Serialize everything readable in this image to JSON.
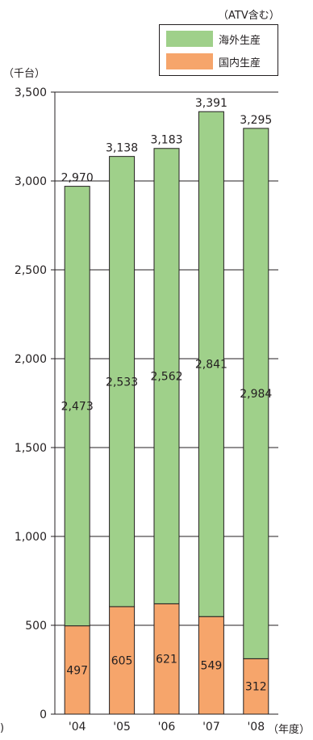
{
  "annotations": {
    "top_note": "（ATV含む）",
    "unit": "（千台）",
    "x_unit": "（年度）",
    "stray_mark": ")"
  },
  "colors": {
    "overseas": "#9fd08a",
    "domestic": "#f6a56b",
    "outline": "#231f20",
    "grid": "#231f20"
  },
  "chart_data": {
    "type": "bar",
    "stacked": true,
    "categories": [
      "'04",
      "'05",
      "'06",
      "'07",
      "'08"
    ],
    "series": [
      {
        "name": "国内生産",
        "values": [
          497,
          605,
          621,
          549,
          312
        ]
      },
      {
        "name": "海外生産",
        "values": [
          2473,
          2533,
          2562,
          2841,
          2984
        ]
      }
    ],
    "totals": [
      2970,
      3138,
      3183,
      3391,
      3295
    ],
    "total_labels": [
      "2,970",
      "3,138",
      "3,183",
      "3,391",
      "3,295"
    ],
    "ylim": [
      0,
      3500
    ],
    "yticks": [
      0,
      500,
      1000,
      1500,
      2000,
      2500,
      3000,
      3500
    ],
    "ytick_labels": [
      "0",
      "500",
      "1,000",
      "1,500",
      "2,000",
      "2,500",
      "3,000",
      "3,500"
    ],
    "legend": [
      "海外生産",
      "国内生産"
    ],
    "legend_position": "top-right",
    "grid": "horizontal"
  }
}
